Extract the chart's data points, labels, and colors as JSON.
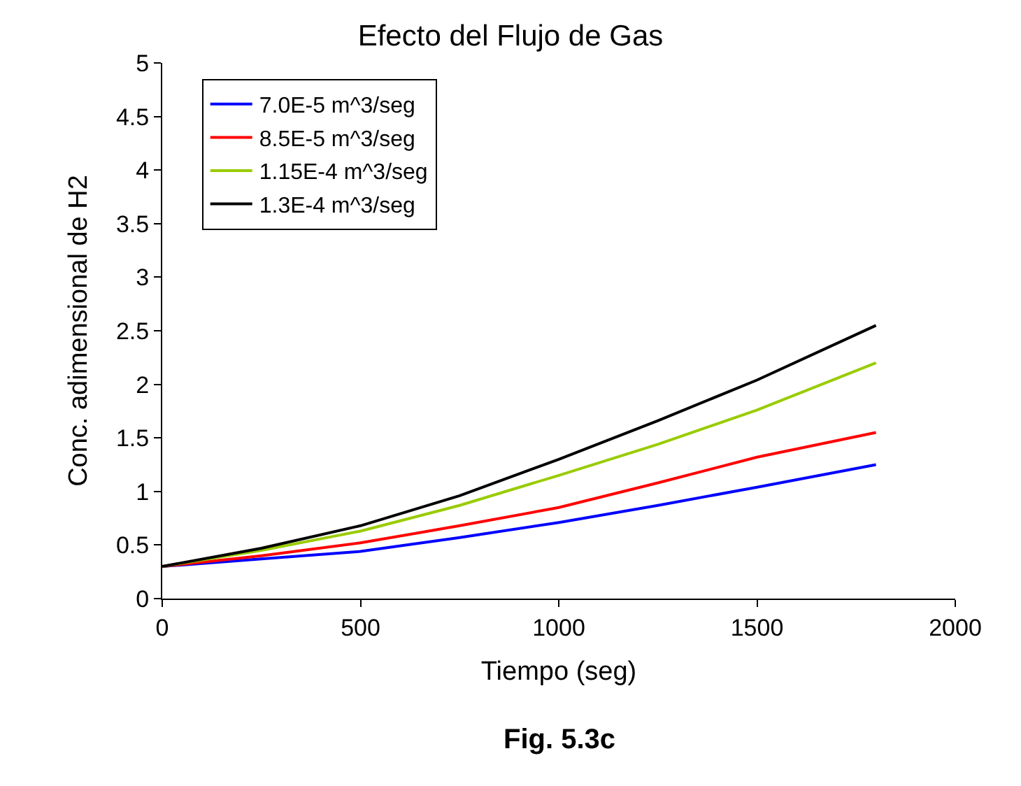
{
  "chart_data": {
    "type": "line",
    "title": "Efecto del Flujo de Gas",
    "xlabel": "Tiempo (seg)",
    "ylabel": "Conc. adimensional de H2",
    "x": [
      0,
      250,
      500,
      750,
      1000,
      1250,
      1500,
      1800
    ],
    "series": [
      {
        "name": "7.0E-5 m^3/seg",
        "color": "#0000ff",
        "values": [
          0.3,
          0.37,
          0.44,
          0.57,
          0.71,
          0.87,
          1.04,
          1.25
        ]
      },
      {
        "name": "8.5E-5 m^3/seg",
        "color": "#ff0000",
        "values": [
          0.3,
          0.4,
          0.52,
          0.68,
          0.85,
          1.08,
          1.32,
          1.55
        ]
      },
      {
        "name": "1.15E-4 m^3/seg",
        "color": "#99cc00",
        "values": [
          0.3,
          0.45,
          0.63,
          0.87,
          1.15,
          1.44,
          1.76,
          2.2
        ]
      },
      {
        "name": "1.3E-4 m^3/seg",
        "color": "#000000",
        "values": [
          0.3,
          0.47,
          0.68,
          0.96,
          1.3,
          1.66,
          2.04,
          2.55
        ]
      }
    ],
    "xlim": [
      0,
      2000
    ],
    "xticks": [
      0,
      500,
      1000,
      1500,
      2000
    ],
    "ylim": [
      0,
      5
    ],
    "yticks": [
      0,
      0.5,
      1,
      1.5,
      2,
      2.5,
      3,
      3.5,
      4,
      4.5,
      5
    ],
    "legend": "top left",
    "marker": "none",
    "line_style": "solid",
    "annotations": [
      "Fig. 5.3c"
    ]
  }
}
